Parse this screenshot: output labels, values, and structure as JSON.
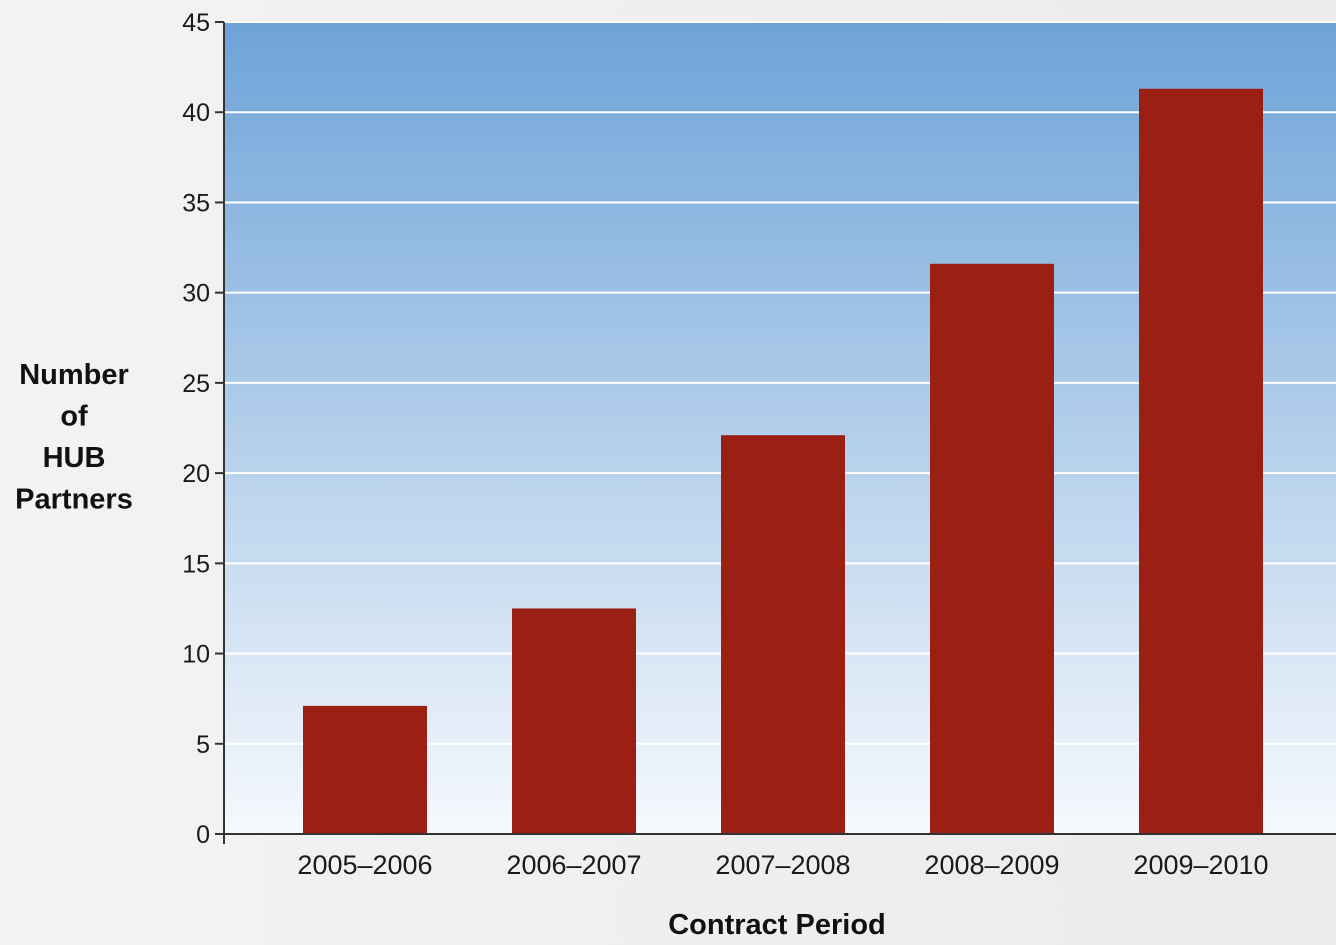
{
  "chart_data": {
    "type": "bar",
    "title": "",
    "xlabel": "Contract Period",
    "ylabel": [
      "Number",
      "of",
      "HUB",
      "Partners"
    ],
    "categories": [
      "2005–2006",
      "2006–2007",
      "2007–2008",
      "2008–2009",
      "2009–2010"
    ],
    "values": [
      7.1,
      12.5,
      22.1,
      31.6,
      41.3
    ],
    "ylim": [
      0,
      45
    ],
    "yticks": [
      0,
      5,
      10,
      15,
      20,
      25,
      30,
      35,
      40,
      45
    ],
    "grid": true,
    "legend": "none",
    "colors": {
      "bar": "#9c1f14",
      "plot_top": "#6ea3d8",
      "plot_bottom": "#f6f9fd",
      "gridline": "#ffffff",
      "axis": "#333333"
    }
  }
}
